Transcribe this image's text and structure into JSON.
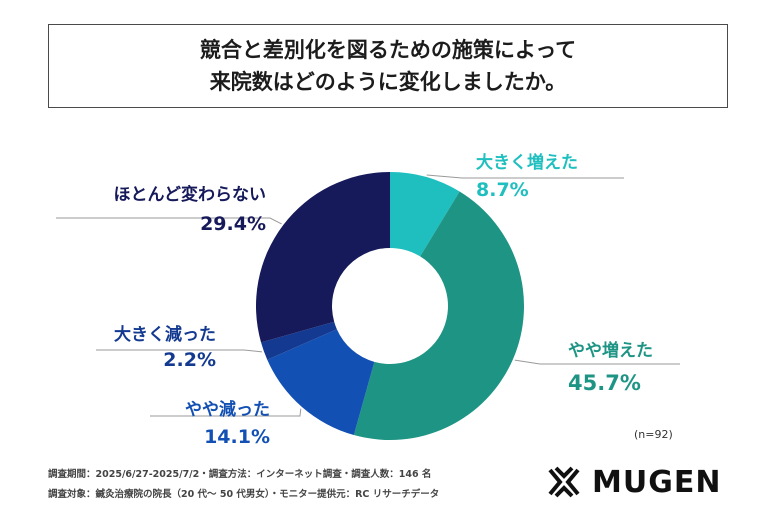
{
  "title": {
    "line1": "競合と差別化を図るための施策によって",
    "line2": "来院数はどのように変化しましたか。"
  },
  "chart_data": {
    "type": "pie",
    "variant": "donut",
    "categories": [
      "大きく増えた",
      "やや増えた",
      "やや減った",
      "大きく減った",
      "ほとんど変わらない"
    ],
    "values": [
      8.7,
      45.7,
      14.1,
      2.2,
      29.4
    ],
    "value_labels": [
      "8.7%",
      "45.7%",
      "14.1%",
      "2.2%",
      "29.4%"
    ],
    "colors": [
      "#1fbfbf",
      "#1d9484",
      "#1350b4",
      "#133a90",
      "#16195a"
    ],
    "sample_note": "(n=92)"
  },
  "footer": {
    "line1": "調査期間：2025/6/27-2025/7/2・調査方法：インターネット調査・調査人数：146 名",
    "line2": "調査対象：鍼灸治療院の院長（20 代〜 50 代男女）・モニター提供元：RC リサーチデータ"
  },
  "logo": {
    "text": "MUGEN",
    "icon": "mugen-logo-icon"
  }
}
